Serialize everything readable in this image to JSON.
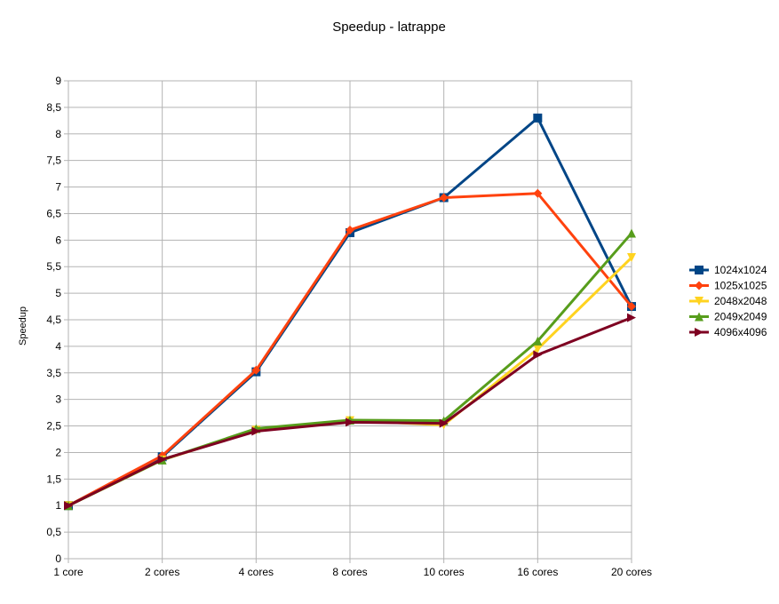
{
  "chart_data": {
    "type": "line",
    "title": "Speedup - latrappe",
    "xlabel": "",
    "ylabel": "Speedup",
    "categories": [
      "1 core",
      "2 cores",
      "4 cores",
      "8 cores",
      "10 cores",
      "16 cores",
      "20 cores"
    ],
    "y_ticks": [
      "0",
      "0,5",
      "1",
      "1,5",
      "2",
      "2,5",
      "3",
      "3,5",
      "4",
      "4,5",
      "5",
      "5,5",
      "6",
      "6,5",
      "7",
      "7,5",
      "8",
      "8,5",
      "9"
    ],
    "ylim": [
      0,
      9
    ],
    "grid": true,
    "legend_position": "right",
    "series": [
      {
        "name": "1024x1024",
        "color": "#004586",
        "marker": "square",
        "values": [
          1,
          1.92,
          3.52,
          6.14,
          6.8,
          8.3,
          4.75
        ]
      },
      {
        "name": "1025x1025",
        "color": "#ff420e",
        "marker": "diamond",
        "values": [
          1,
          1.94,
          3.55,
          6.19,
          6.8,
          6.88,
          4.75
        ]
      },
      {
        "name": "2048x2048",
        "color": "#ffd320",
        "marker": "triangle-down",
        "values": [
          1,
          1.86,
          2.42,
          2.6,
          2.52,
          3.95,
          5.67
        ]
      },
      {
        "name": "2049x2049",
        "color": "#579d1c",
        "marker": "triangle-up",
        "values": [
          1,
          1.86,
          2.45,
          2.61,
          2.6,
          4.1,
          6.13
        ]
      },
      {
        "name": "4096x4096",
        "color": "#7e0021",
        "marker": "triangle-right",
        "values": [
          1,
          1.87,
          2.4,
          2.57,
          2.55,
          3.84,
          4.54
        ]
      }
    ]
  }
}
